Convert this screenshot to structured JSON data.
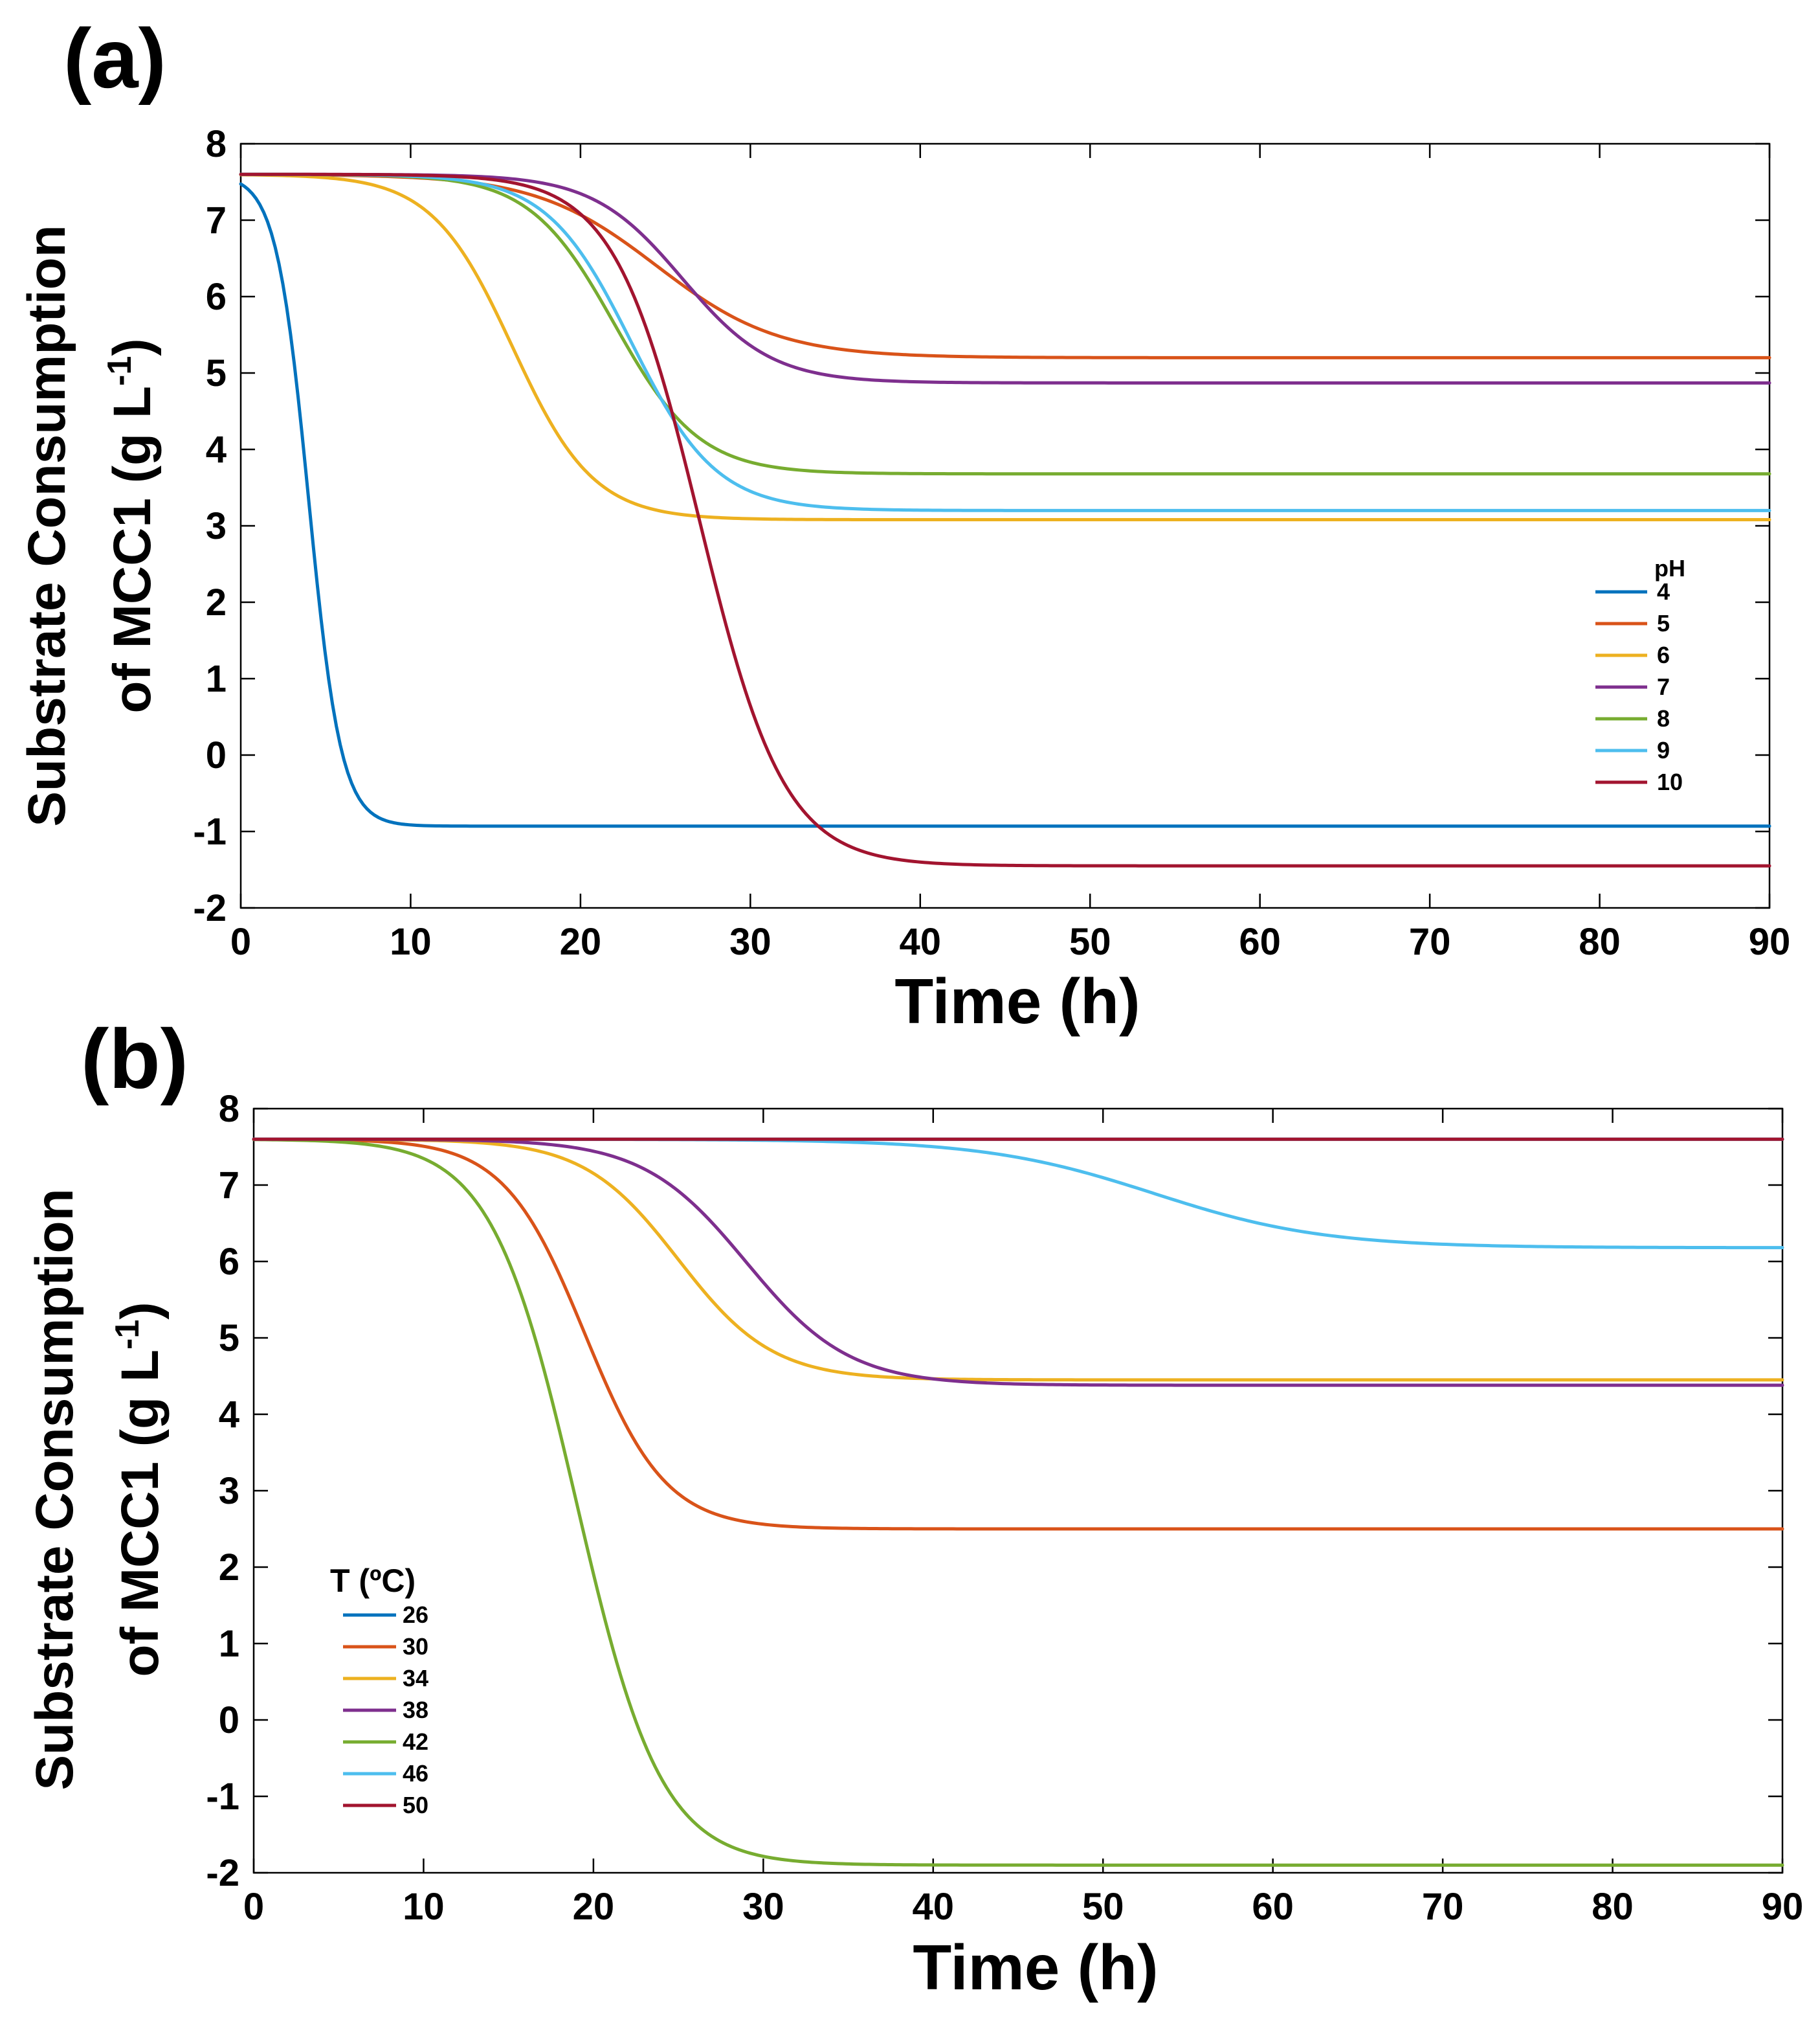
{
  "chart_data": [
    {
      "panel": "(a)",
      "type": "line",
      "xlabel": "Time (h)",
      "ylabel_line1": "Substrate Consumption",
      "ylabel_line2": "of MCC1 (g L",
      "ylabel_sup": "-1",
      "ylabel_close": ")",
      "xlim": [
        0,
        90
      ],
      "ylim": [
        -2,
        8
      ],
      "xticks": [
        0,
        10,
        20,
        30,
        40,
        50,
        60,
        70,
        80,
        90
      ],
      "yticks": [
        -2,
        -1,
        0,
        1,
        2,
        3,
        4,
        5,
        6,
        7,
        8
      ],
      "legend_title": "pH",
      "legend_position": "right",
      "series": [
        {
          "name": "4",
          "color": "#0072BD",
          "start": 7.6,
          "end": -0.93,
          "t_mid": 4.0,
          "k": 1.05
        },
        {
          "name": "5",
          "color": "#D95319",
          "start": 7.6,
          "end": 5.2,
          "t_mid": 24.5,
          "k": 0.28
        },
        {
          "name": "6",
          "color": "#EDB120",
          "start": 7.6,
          "end": 3.08,
          "t_mid": 16.0,
          "k": 0.42
        },
        {
          "name": "7",
          "color": "#7E2F8E",
          "start": 7.6,
          "end": 4.87,
          "t_mid": 26.0,
          "k": 0.38
        },
        {
          "name": "8",
          "color": "#77AC30",
          "start": 7.6,
          "end": 3.68,
          "t_mid": 22.0,
          "k": 0.4
        },
        {
          "name": "9",
          "color": "#4DBEEE",
          "start": 7.6,
          "end": 3.2,
          "t_mid": 23.0,
          "k": 0.4
        },
        {
          "name": "10",
          "color": "#A2142F",
          "start": 7.6,
          "end": -1.45,
          "t_mid": 27.0,
          "k": 0.4
        }
      ]
    },
    {
      "panel": "(b)",
      "type": "line",
      "xlabel": "Time (h)",
      "ylabel_line1": "Substrate Consumption",
      "ylabel_line2": "of MCC1 (g L",
      "ylabel_sup": "-1",
      "ylabel_close": ")",
      "xlim": [
        0,
        90
      ],
      "ylim": [
        -2,
        8
      ],
      "xticks": [
        0,
        10,
        20,
        30,
        40,
        50,
        60,
        70,
        80,
        90
      ],
      "yticks": [
        -2,
        -1,
        0,
        1,
        2,
        3,
        4,
        5,
        6,
        7,
        8
      ],
      "legend_title": "T (ºC)",
      "legend_position": "lower-left",
      "series": [
        {
          "name": "26",
          "color": "#0072BD",
          "start": 7.6,
          "end": 7.6,
          "t_mid": 50.0,
          "k": 0.3
        },
        {
          "name": "30",
          "color": "#D95319",
          "start": 7.6,
          "end": 2.5,
          "t_mid": 19.5,
          "k": 0.42
        },
        {
          "name": "34",
          "color": "#EDB120",
          "start": 7.6,
          "end": 4.45,
          "t_mid": 25.0,
          "k": 0.36
        },
        {
          "name": "38",
          "color": "#7E2F8E",
          "start": 7.6,
          "end": 4.38,
          "t_mid": 29.0,
          "k": 0.33
        },
        {
          "name": "42",
          "color": "#77AC30",
          "start": 7.6,
          "end": -1.9,
          "t_mid": 19.0,
          "k": 0.4
        },
        {
          "name": "46",
          "color": "#4DBEEE",
          "start": 7.6,
          "end": 6.18,
          "t_mid": 53.0,
          "k": 0.2
        },
        {
          "name": "50",
          "color": "#A2142F",
          "start": 7.6,
          "end": 7.6,
          "t_mid": 50.0,
          "k": 0.3
        }
      ]
    }
  ]
}
